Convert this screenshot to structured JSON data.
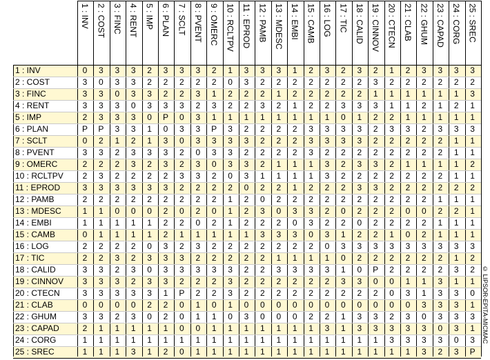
{
  "columns": [
    "1 : INV",
    "2 : COST",
    "3 : FINC",
    "4 : RENT",
    "5 : IMP",
    "6 : PLAN",
    "7 : SCLT",
    "8 : PVENT",
    "9 : OMERC",
    "10 : RCLTPV",
    "11 : EPROD",
    "12 : PAMB",
    "13 : MDESC",
    "14 : EMBI",
    "15 : CAMB",
    "16 : LOG",
    "17 : TIC",
    "18 : CALID",
    "19 : CINNOV",
    "20 : CTECN",
    "21 : CLAB",
    "22 : GHUM",
    "23 : CAPAD",
    "24 : CORG",
    "25 : SREC"
  ],
  "rows": [
    {
      "label": "1 : INV",
      "values": [
        "0",
        "3",
        "3",
        "3",
        "2",
        "3",
        "3",
        "3",
        "2",
        "1",
        "3",
        "3",
        "3",
        "1",
        "2",
        "3",
        "2",
        "3",
        "2",
        "1",
        "2",
        "3",
        "3",
        "3",
        "3"
      ]
    },
    {
      "label": "2 : COST",
      "values": [
        "3",
        "0",
        "3",
        "3",
        "2",
        "2",
        "2",
        "2",
        "2",
        "0",
        "3",
        "2",
        "2",
        "2",
        "2",
        "2",
        "2",
        "2",
        "3",
        "2",
        "2",
        "2",
        "2",
        "2",
        "2"
      ]
    },
    {
      "label": "3 : FINC",
      "values": [
        "3",
        "3",
        "0",
        "3",
        "3",
        "2",
        "2",
        "3",
        "1",
        "2",
        "2",
        "2",
        "1",
        "2",
        "2",
        "2",
        "2",
        "2",
        "1",
        "1",
        "1",
        "1",
        "1",
        "1",
        "3"
      ]
    },
    {
      "label": "4 : RENT",
      "values": [
        "3",
        "3",
        "3",
        "0",
        "3",
        "3",
        "3",
        "2",
        "3",
        "2",
        "2",
        "3",
        "2",
        "1",
        "2",
        "2",
        "3",
        "3",
        "3",
        "1",
        "1",
        "2",
        "1",
        "2",
        "1"
      ]
    },
    {
      "label": "5 : IMP",
      "values": [
        "2",
        "3",
        "3",
        "3",
        "0",
        "P",
        "0",
        "3",
        "1",
        "1",
        "1",
        "1",
        "1",
        "1",
        "1",
        "1",
        "0",
        "1",
        "2",
        "2",
        "1",
        "1",
        "1",
        "1",
        "1"
      ]
    },
    {
      "label": "6 : PLAN",
      "values": [
        "P",
        "P",
        "3",
        "3",
        "1",
        "0",
        "3",
        "3",
        "P",
        "3",
        "2",
        "2",
        "2",
        "2",
        "3",
        "3",
        "3",
        "3",
        "2",
        "3",
        "3",
        "2",
        "3",
        "3",
        "3"
      ]
    },
    {
      "label": "7 : SCLT",
      "values": [
        "0",
        "2",
        "1",
        "2",
        "1",
        "3",
        "0",
        "3",
        "3",
        "3",
        "3",
        "2",
        "2",
        "2",
        "3",
        "3",
        "3",
        "3",
        "2",
        "2",
        "2",
        "2",
        "2",
        "1",
        "1"
      ]
    },
    {
      "label": "8 : PVENT",
      "values": [
        "3",
        "3",
        "2",
        "3",
        "3",
        "3",
        "2",
        "0",
        "3",
        "3",
        "2",
        "2",
        "2",
        "2",
        "3",
        "2",
        "2",
        "2",
        "2",
        "2",
        "2",
        "2",
        "2",
        "1",
        "1"
      ]
    },
    {
      "label": "9 : OMERC",
      "values": [
        "2",
        "2",
        "2",
        "3",
        "2",
        "3",
        "2",
        "3",
        "0",
        "3",
        "3",
        "2",
        "1",
        "1",
        "1",
        "3",
        "2",
        "3",
        "3",
        "2",
        "1",
        "1",
        "1",
        "1",
        "2"
      ]
    },
    {
      "label": "10 : RCLTPV",
      "values": [
        "2",
        "3",
        "2",
        "2",
        "2",
        "2",
        "3",
        "3",
        "2",
        "0",
        "3",
        "1",
        "1",
        "1",
        "1",
        "3",
        "2",
        "2",
        "2",
        "2",
        "2",
        "2",
        "2",
        "1",
        "1"
      ]
    },
    {
      "label": "11 : EPROD",
      "values": [
        "3",
        "3",
        "3",
        "3",
        "3",
        "3",
        "2",
        "2",
        "2",
        "2",
        "0",
        "2",
        "2",
        "1",
        "2",
        "2",
        "2",
        "3",
        "3",
        "2",
        "2",
        "2",
        "2",
        "2",
        "2"
      ]
    },
    {
      "label": "12 : PAMB",
      "values": [
        "2",
        "2",
        "2",
        "2",
        "2",
        "2",
        "2",
        "2",
        "2",
        "1",
        "2",
        "0",
        "2",
        "2",
        "2",
        "2",
        "2",
        "2",
        "2",
        "2",
        "2",
        "2",
        "1",
        "1",
        "1"
      ]
    },
    {
      "label": "13 : MDESC",
      "values": [
        "1",
        "1",
        "0",
        "0",
        "0",
        "2",
        "0",
        "2",
        "0",
        "1",
        "2",
        "3",
        "0",
        "3",
        "3",
        "2",
        "0",
        "2",
        "2",
        "2",
        "0",
        "0",
        "2",
        "2",
        "1"
      ]
    },
    {
      "label": "14 : EMBI",
      "values": [
        "1",
        "1",
        "1",
        "1",
        "1",
        "2",
        "2",
        "0",
        "2",
        "1",
        "2",
        "2",
        "2",
        "0",
        "3",
        "2",
        "2",
        "0",
        "2",
        "2",
        "2",
        "2",
        "1",
        "1",
        "1"
      ]
    },
    {
      "label": "15 : CAMB",
      "values": [
        "0",
        "1",
        "1",
        "1",
        "1",
        "2",
        "1",
        "1",
        "1",
        "1",
        "1",
        "3",
        "3",
        "3",
        "0",
        "3",
        "1",
        "2",
        "2",
        "1",
        "0",
        "2",
        "1",
        "1",
        "1"
      ]
    },
    {
      "label": "16 : LOG",
      "values": [
        "2",
        "2",
        "2",
        "2",
        "0",
        "3",
        "2",
        "3",
        "2",
        "2",
        "2",
        "2",
        "2",
        "2",
        "2",
        "0",
        "3",
        "3",
        "3",
        "3",
        "3",
        "3",
        "3",
        "3",
        "3"
      ]
    },
    {
      "label": "17 : TIC",
      "values": [
        "2",
        "2",
        "3",
        "2",
        "3",
        "3",
        "3",
        "2",
        "2",
        "2",
        "2",
        "2",
        "1",
        "1",
        "1",
        "1",
        "0",
        "2",
        "2",
        "2",
        "2",
        "2",
        "2",
        "1",
        "2"
      ]
    },
    {
      "label": "18 : CALID",
      "values": [
        "3",
        "3",
        "2",
        "3",
        "0",
        "3",
        "3",
        "3",
        "3",
        "3",
        "2",
        "2",
        "3",
        "3",
        "3",
        "3",
        "1",
        "0",
        "P",
        "2",
        "2",
        "2",
        "2",
        "3",
        "2"
      ]
    },
    {
      "label": "19 : CINNOV",
      "values": [
        "3",
        "3",
        "3",
        "2",
        "3",
        "3",
        "2",
        "2",
        "2",
        "3",
        "2",
        "2",
        "2",
        "2",
        "2",
        "2",
        "3",
        "3",
        "0",
        "0",
        "1",
        "1",
        "3",
        "1",
        "1"
      ]
    },
    {
      "label": "20 : CTECN",
      "values": [
        "3",
        "3",
        "3",
        "3",
        "3",
        "1",
        "P",
        "2",
        "2",
        "3",
        "2",
        "2",
        "2",
        "2",
        "2",
        "2",
        "2",
        "2",
        "2",
        "0",
        "3",
        "1",
        "3",
        "3",
        "0"
      ]
    },
    {
      "label": "21 : CLAB",
      "values": [
        "0",
        "0",
        "0",
        "0",
        "2",
        "2",
        "0",
        "1",
        "0",
        "1",
        "0",
        "0",
        "0",
        "0",
        "0",
        "0",
        "0",
        "0",
        "0",
        "0",
        "0",
        "3",
        "3",
        "3",
        "1"
      ]
    },
    {
      "label": "22 : GHUM",
      "values": [
        "3",
        "3",
        "2",
        "3",
        "0",
        "2",
        "0",
        "1",
        "1",
        "0",
        "3",
        "0",
        "0",
        "0",
        "2",
        "2",
        "1",
        "3",
        "3",
        "2",
        "3",
        "0",
        "3",
        "3",
        "3"
      ]
    },
    {
      "label": "23 : CAPAD",
      "values": [
        "2",
        "1",
        "1",
        "1",
        "1",
        "1",
        "0",
        "0",
        "1",
        "1",
        "1",
        "1",
        "1",
        "1",
        "1",
        "3",
        "1",
        "3",
        "3",
        "3",
        "3",
        "3",
        "0",
        "3",
        "1"
      ]
    },
    {
      "label": "24 : CORG",
      "values": [
        "1",
        "1",
        "1",
        "1",
        "1",
        "1",
        "1",
        "1",
        "1",
        "1",
        "1",
        "1",
        "1",
        "1",
        "1",
        "1",
        "1",
        "1",
        "1",
        "3",
        "3",
        "3",
        "3",
        "0",
        "3"
      ]
    },
    {
      "label": "25 : SREC",
      "values": [
        "1",
        "1",
        "1",
        "3",
        "1",
        "2",
        "0",
        "1",
        "1",
        "1",
        "1",
        "1",
        "1",
        "1",
        "1",
        "1",
        "1",
        "1",
        "1",
        "1",
        "1",
        "3",
        "2",
        "3",
        "P"
      ]
    }
  ],
  "copyright": "© LIPSOR-EPITA-MICMAC"
}
